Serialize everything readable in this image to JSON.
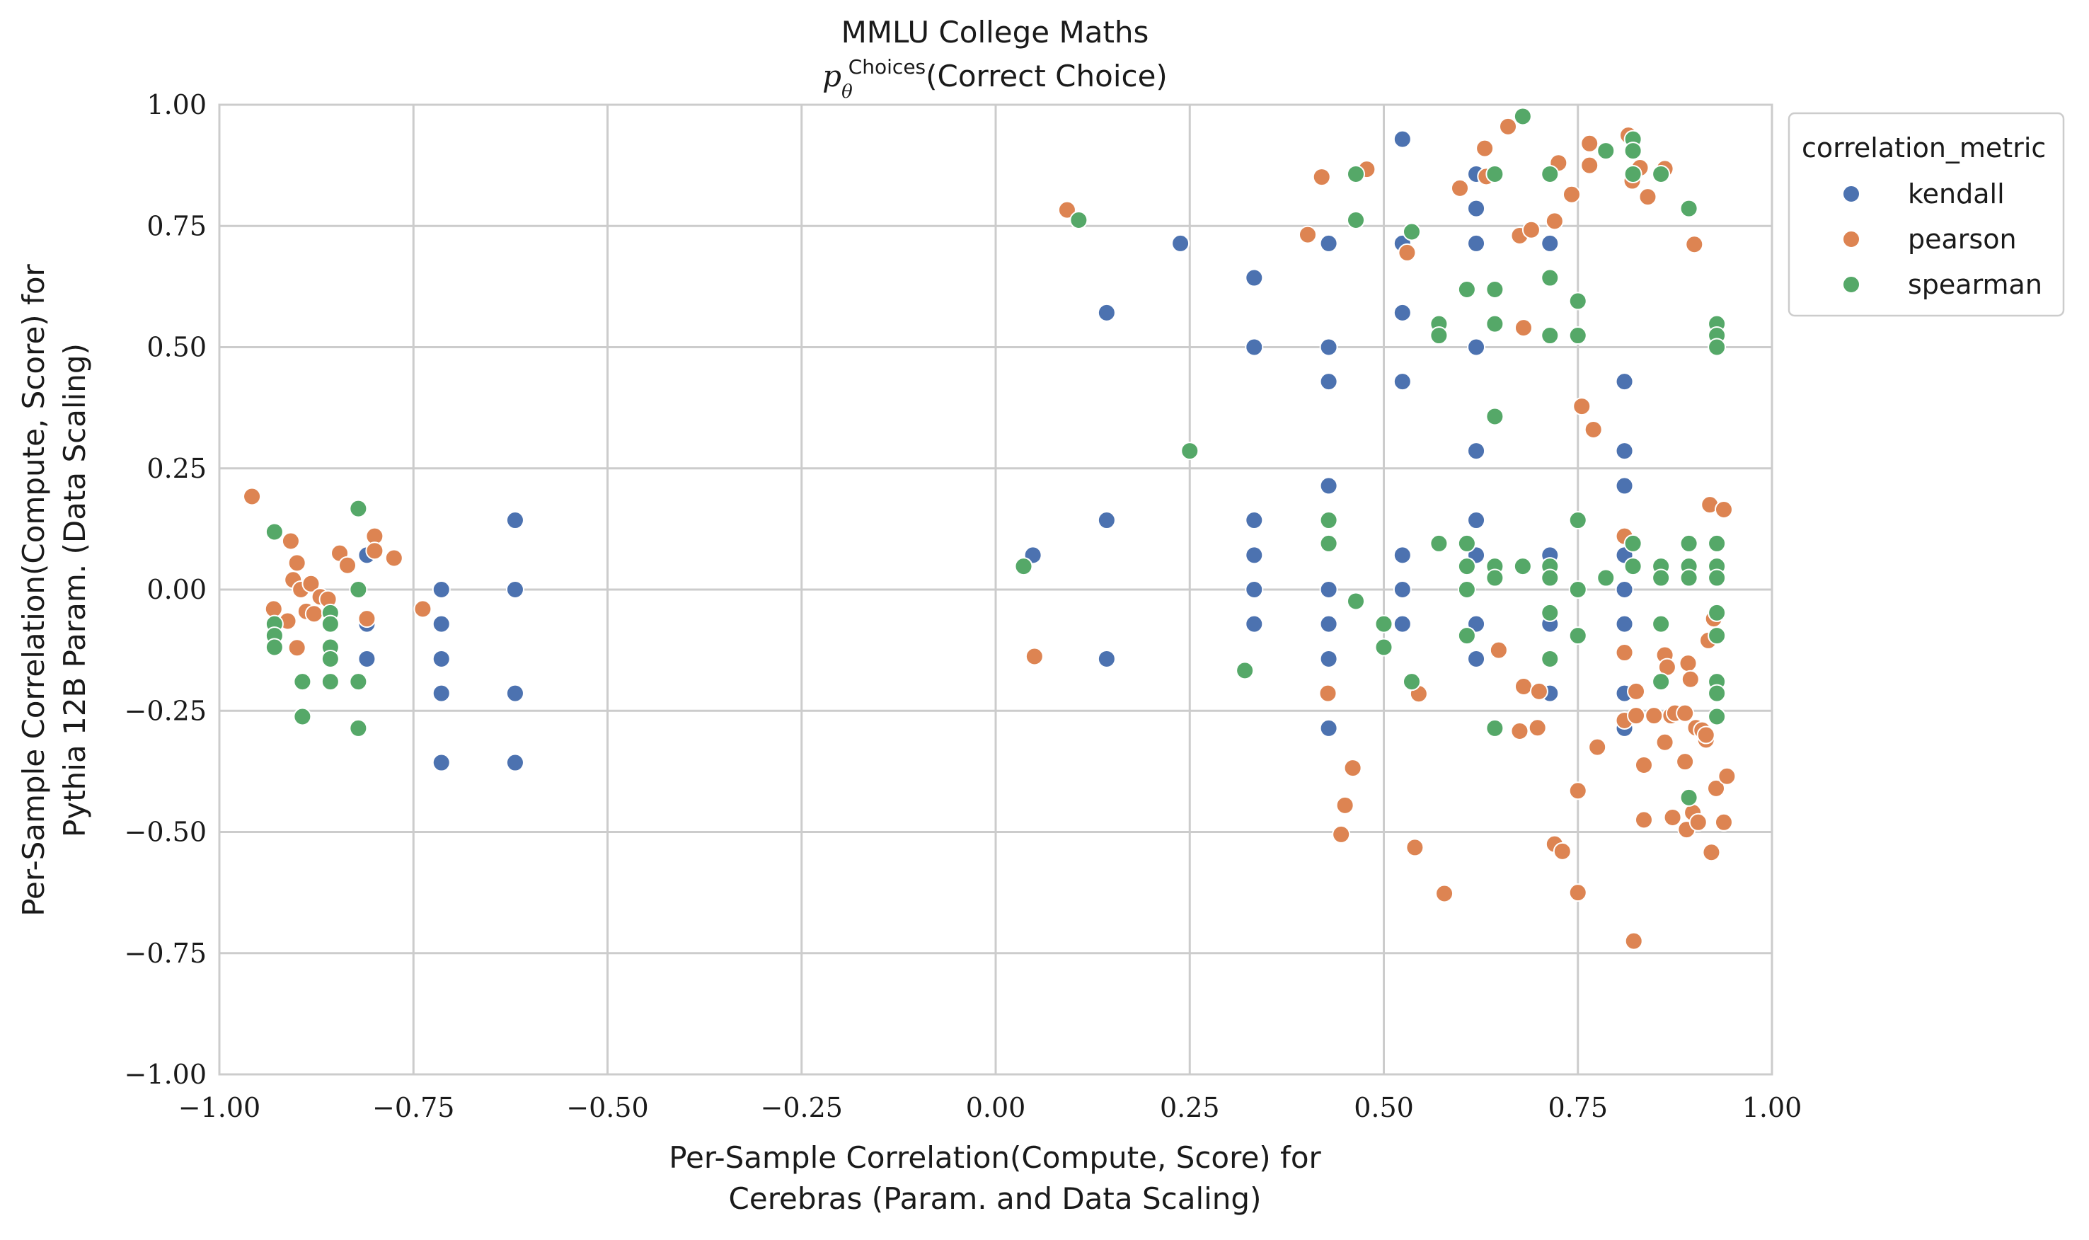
{
  "chart_data": {
    "type": "scatter",
    "title": "MMLU College Maths",
    "subtitle_base": "p",
    "subtitle_sup": "Choices",
    "subtitle_sub": "θ",
    "subtitle_rest": "(Correct Choice)",
    "xlabel_line1": "Per-Sample Correlation(Compute, Score) for",
    "xlabel_line2": "Cerebras (Param. and Data Scaling)",
    "ylabel_line1": "Per-Sample Correlation(Compute, Score) for",
    "ylabel_line2": "Pythia 12B Param. (Data Scaling)",
    "xlim": [
      -1.0,
      1.0
    ],
    "ylim": [
      -1.0,
      1.0
    ],
    "x_ticks": [
      "−1.00",
      "−0.75",
      "−0.50",
      "−0.25",
      "0.00",
      "0.25",
      "0.50",
      "0.75",
      "1.00"
    ],
    "y_ticks": [
      "−1.00",
      "−0.75",
      "−0.50",
      "−0.25",
      "0.00",
      "0.25",
      "0.50",
      "0.75",
      "1.00"
    ],
    "grid": true,
    "legend": {
      "title": "correlation_metric",
      "placement": "outside-top-right",
      "entries": [
        "kendall",
        "pearson",
        "spearman"
      ]
    },
    "colors": {
      "kendall": "#4c72b0",
      "pearson": "#dd8452",
      "spearman": "#55a868"
    },
    "series": [
      {
        "name": "kendall",
        "points": [
          [
            -0.81,
            0.071
          ],
          [
            -0.81,
            -0.071
          ],
          [
            -0.81,
            -0.143
          ],
          [
            -0.714,
            0.0
          ],
          [
            -0.714,
            -0.071
          ],
          [
            -0.714,
            -0.143
          ],
          [
            -0.714,
            -0.214
          ],
          [
            -0.714,
            -0.357
          ],
          [
            -0.619,
            0.143
          ],
          [
            -0.619,
            0.0
          ],
          [
            -0.619,
            -0.214
          ],
          [
            -0.619,
            -0.357
          ],
          [
            0.048,
            0.071
          ],
          [
            0.143,
            0.571
          ],
          [
            0.143,
            0.143
          ],
          [
            0.143,
            -0.143
          ],
          [
            0.238,
            0.714
          ],
          [
            0.333,
            0.643
          ],
          [
            0.333,
            0.5
          ],
          [
            0.333,
            0.143
          ],
          [
            0.333,
            0.071
          ],
          [
            0.333,
            0.0
          ],
          [
            0.333,
            -0.071
          ],
          [
            0.429,
            0.714
          ],
          [
            0.429,
            0.5
          ],
          [
            0.429,
            0.429
          ],
          [
            0.429,
            0.214
          ],
          [
            0.429,
            0.0
          ],
          [
            0.429,
            -0.071
          ],
          [
            0.429,
            -0.143
          ],
          [
            0.429,
            -0.286
          ],
          [
            0.524,
            0.929
          ],
          [
            0.524,
            0.714
          ],
          [
            0.524,
            0.571
          ],
          [
            0.524,
            0.429
          ],
          [
            0.524,
            0.071
          ],
          [
            0.524,
            0.0
          ],
          [
            0.524,
            -0.071
          ],
          [
            0.619,
            0.857
          ],
          [
            0.619,
            0.786
          ],
          [
            0.619,
            0.714
          ],
          [
            0.619,
            0.5
          ],
          [
            0.619,
            0.286
          ],
          [
            0.619,
            0.143
          ],
          [
            0.619,
            0.071
          ],
          [
            0.619,
            -0.071
          ],
          [
            0.619,
            -0.143
          ],
          [
            0.714,
            0.714
          ],
          [
            0.714,
            0.071
          ],
          [
            0.714,
            -0.071
          ],
          [
            0.714,
            -0.214
          ],
          [
            0.81,
            0.429
          ],
          [
            0.81,
            0.286
          ],
          [
            0.81,
            0.214
          ],
          [
            0.81,
            0.071
          ],
          [
            0.81,
            0.0
          ],
          [
            0.81,
            -0.071
          ],
          [
            0.81,
            -0.214
          ],
          [
            0.81,
            -0.286
          ]
        ]
      },
      {
        "name": "pearson",
        "points": [
          [
            -0.958,
            0.192
          ],
          [
            -0.93,
            -0.04
          ],
          [
            -0.912,
            -0.065
          ],
          [
            -0.908,
            0.1
          ],
          [
            -0.905,
            0.02
          ],
          [
            -0.9,
            0.055
          ],
          [
            -0.9,
            -0.12
          ],
          [
            -0.895,
            0.0
          ],
          [
            -0.888,
            -0.045
          ],
          [
            -0.882,
            0.012
          ],
          [
            -0.878,
            -0.05
          ],
          [
            -0.87,
            -0.015
          ],
          [
            -0.86,
            -0.02
          ],
          [
            -0.845,
            0.075
          ],
          [
            -0.835,
            0.05
          ],
          [
            -0.81,
            -0.06
          ],
          [
            -0.8,
            0.11
          ],
          [
            -0.8,
            0.08
          ],
          [
            -0.775,
            0.065
          ],
          [
            -0.738,
            -0.04
          ],
          [
            0.092,
            0.783
          ],
          [
            0.05,
            -0.138
          ],
          [
            0.402,
            0.732
          ],
          [
            0.42,
            0.851
          ],
          [
            0.428,
            -0.214
          ],
          [
            0.45,
            -0.445
          ],
          [
            0.445,
            -0.505
          ],
          [
            0.46,
            -0.368
          ],
          [
            0.478,
            0.867
          ],
          [
            0.53,
            0.695
          ],
          [
            0.545,
            -0.215
          ],
          [
            0.54,
            -0.532
          ],
          [
            0.578,
            -0.627
          ],
          [
            0.598,
            0.828
          ],
          [
            0.63,
            0.91
          ],
          [
            0.632,
            0.852
          ],
          [
            0.648,
            -0.125
          ],
          [
            0.66,
            0.955
          ],
          [
            0.68,
            0.54
          ],
          [
            0.675,
            0.73
          ],
          [
            0.675,
            -0.292
          ],
          [
            0.68,
            -0.2
          ],
          [
            0.69,
            0.742
          ],
          [
            0.7,
            -0.21
          ],
          [
            0.698,
            -0.285
          ],
          [
            0.72,
            0.76
          ],
          [
            0.725,
            0.88
          ],
          [
            0.72,
            -0.525
          ],
          [
            0.73,
            -0.54
          ],
          [
            0.742,
            0.815
          ],
          [
            0.755,
            0.378
          ],
          [
            0.75,
            -0.415
          ],
          [
            0.75,
            -0.625
          ],
          [
            0.765,
            0.92
          ],
          [
            0.765,
            0.875
          ],
          [
            0.77,
            0.33
          ],
          [
            0.775,
            -0.325
          ],
          [
            0.81,
            0.11
          ],
          [
            0.81,
            -0.13
          ],
          [
            0.81,
            -0.27
          ],
          [
            0.815,
            0.937
          ],
          [
            0.82,
            0.843
          ],
          [
            0.825,
            -0.21
          ],
          [
            0.825,
            -0.26
          ],
          [
            0.822,
            -0.725
          ],
          [
            0.83,
            0.87
          ],
          [
            0.835,
            -0.362
          ],
          [
            0.84,
            0.81
          ],
          [
            0.835,
            -0.475
          ],
          [
            0.848,
            -0.26
          ],
          [
            0.862,
            0.868
          ],
          [
            0.862,
            -0.135
          ],
          [
            0.865,
            -0.16
          ],
          [
            0.862,
            -0.315
          ],
          [
            0.87,
            -0.26
          ],
          [
            0.872,
            -0.47
          ],
          [
            0.875,
            -0.255
          ],
          [
            0.888,
            -0.255
          ],
          [
            0.888,
            -0.355
          ],
          [
            0.89,
            -0.495
          ],
          [
            0.892,
            -0.152
          ],
          [
            0.895,
            -0.185
          ],
          [
            0.898,
            -0.46
          ],
          [
            0.9,
            0.712
          ],
          [
            0.902,
            -0.285
          ],
          [
            0.91,
            -0.29
          ],
          [
            0.905,
            -0.48
          ],
          [
            0.915,
            -0.31
          ],
          [
            0.915,
            -0.3
          ],
          [
            0.918,
            -0.105
          ],
          [
            0.92,
            0.175
          ],
          [
            0.925,
            -0.06
          ],
          [
            0.922,
            -0.542
          ],
          [
            0.928,
            -0.41
          ],
          [
            0.938,
            0.165
          ],
          [
            0.938,
            -0.48
          ],
          [
            0.942,
            -0.385
          ]
        ]
      },
      {
        "name": "spearman",
        "points": [
          [
            -0.929,
            0.119
          ],
          [
            -0.929,
            -0.071
          ],
          [
            -0.929,
            -0.095
          ],
          [
            -0.929,
            -0.119
          ],
          [
            -0.893,
            -0.19
          ],
          [
            -0.893,
            -0.262
          ],
          [
            -0.857,
            -0.048
          ],
          [
            -0.857,
            -0.071
          ],
          [
            -0.857,
            -0.119
          ],
          [
            -0.857,
            -0.143
          ],
          [
            -0.857,
            -0.19
          ],
          [
            -0.821,
            0.167
          ],
          [
            -0.821,
            0.0
          ],
          [
            -0.821,
            -0.19
          ],
          [
            -0.821,
            -0.286
          ],
          [
            0.036,
            0.048
          ],
          [
            0.107,
            0.762
          ],
          [
            0.25,
            0.286
          ],
          [
            0.321,
            -0.167
          ],
          [
            0.429,
            0.143
          ],
          [
            0.429,
            0.095
          ],
          [
            0.464,
            0.857
          ],
          [
            0.464,
            0.762
          ],
          [
            0.464,
            -0.024
          ],
          [
            0.5,
            -0.071
          ],
          [
            0.5,
            -0.119
          ],
          [
            0.536,
            0.738
          ],
          [
            0.536,
            -0.19
          ],
          [
            0.571,
            0.548
          ],
          [
            0.571,
            0.524
          ],
          [
            0.571,
            0.095
          ],
          [
            0.607,
            0.619
          ],
          [
            0.607,
            0.095
          ],
          [
            0.607,
            0.048
          ],
          [
            0.607,
            0.0
          ],
          [
            0.607,
            -0.095
          ],
          [
            0.643,
            0.857
          ],
          [
            0.643,
            0.619
          ],
          [
            0.643,
            0.548
          ],
          [
            0.643,
            0.357
          ],
          [
            0.643,
            0.048
          ],
          [
            0.643,
            0.024
          ],
          [
            0.643,
            -0.286
          ],
          [
            0.679,
            0.976
          ],
          [
            0.679,
            0.048
          ],
          [
            0.714,
            0.857
          ],
          [
            0.714,
            0.643
          ],
          [
            0.714,
            0.524
          ],
          [
            0.714,
            0.048
          ],
          [
            0.714,
            0.024
          ],
          [
            0.714,
            -0.048
          ],
          [
            0.714,
            -0.143
          ],
          [
            0.75,
            0.595
          ],
          [
            0.75,
            0.524
          ],
          [
            0.75,
            0.143
          ],
          [
            0.75,
            0.0
          ],
          [
            0.75,
            -0.095
          ],
          [
            0.786,
            0.905
          ],
          [
            0.786,
            0.024
          ],
          [
            0.821,
            0.929
          ],
          [
            0.821,
            0.905
          ],
          [
            0.821,
            0.857
          ],
          [
            0.821,
            0.095
          ],
          [
            0.821,
            0.048
          ],
          [
            0.857,
            0.857
          ],
          [
            0.857,
            0.048
          ],
          [
            0.857,
            0.024
          ],
          [
            0.857,
            -0.071
          ],
          [
            0.857,
            -0.19
          ],
          [
            0.893,
            0.786
          ],
          [
            0.893,
            0.095
          ],
          [
            0.893,
            0.048
          ],
          [
            0.893,
            0.024
          ],
          [
            0.893,
            -0.429
          ],
          [
            0.929,
            0.548
          ],
          [
            0.929,
            0.524
          ],
          [
            0.929,
            0.5
          ],
          [
            0.929,
            0.095
          ],
          [
            0.929,
            0.048
          ],
          [
            0.929,
            0.024
          ],
          [
            0.929,
            -0.048
          ],
          [
            0.929,
            -0.095
          ],
          [
            0.929,
            -0.19
          ],
          [
            0.929,
            -0.214
          ],
          [
            0.929,
            -0.262
          ]
        ]
      }
    ]
  }
}
